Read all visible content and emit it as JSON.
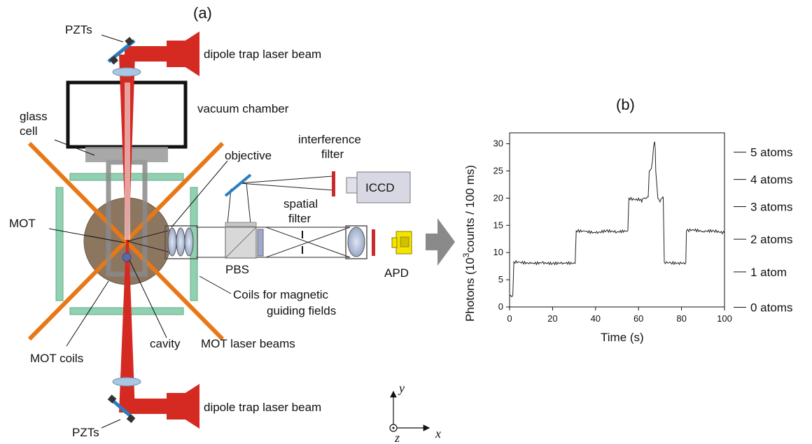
{
  "panel_a": {
    "label": "(a)",
    "dipole_beam_top": "dipole trap laser beam",
    "dipole_beam_bottom": "dipole trap laser beam",
    "pzts_top": "PZTs",
    "pzts_bottom": "PZTs",
    "vacuum_chamber": "vacuum chamber",
    "glass_cell_line1": "glass",
    "glass_cell_line2": "cell",
    "objective": "objective",
    "interference_filter_line1": "interference",
    "interference_filter_line2": "filter",
    "iccd": "ICCD",
    "spatial_filter_line1": "spatial",
    "spatial_filter_line2": "filter",
    "mot": "MOT",
    "pbs": "PBS",
    "apd": "APD",
    "coils_line1": "Coils for magnetic",
    "coils_line2": "guiding fields",
    "cavity": "cavity",
    "mot_laser_beams": "MOT laser beams",
    "mot_coils": "MOT coils",
    "axis_y": "y",
    "axis_x": "x",
    "axis_z": "z"
  },
  "colors": {
    "dipole_red": "#d42a22",
    "mot_orange": "#e87817",
    "coil_green": "#8fd1b0",
    "glass_gray": "#9a9a9a",
    "cell_brown": "#8c7660",
    "mirror_blue": "#2a7ec0",
    "apd_yellow": "#f5e400",
    "arrow_gray": "#8a8a8a"
  },
  "chart_data": {
    "type": "line",
    "panel_label": "(b)",
    "xlabel": "Time (s)",
    "ylabel_prefix": "Photons (10",
    "ylabel_exp": "3",
    "ylabel_suffix": "counts / 100 ms)",
    "xlim": [
      0,
      100
    ],
    "ylim": [
      0,
      32
    ],
    "xticks": [
      "0",
      "20",
      "40",
      "60",
      "80",
      "100"
    ],
    "yticks": [
      "0",
      "5",
      "10",
      "15",
      "20",
      "25",
      "30"
    ],
    "atom_levels": [
      {
        "label": "5 atoms",
        "y": 30.5
      },
      {
        "label": "4 atoms",
        "y": 25.5
      },
      {
        "label": "3 atoms",
        "y": 20.5
      },
      {
        "label": "2 atoms",
        "y": 14.5
      },
      {
        "label": "1 atom",
        "y": 8.5
      },
      {
        "label": "0 atoms",
        "y": 2.0
      }
    ],
    "series": [
      {
        "x": [
          0,
          1.5,
          2,
          5,
          10,
          15,
          20,
          25,
          30.5,
          31,
          35,
          40,
          45,
          50,
          55,
          55.5,
          58,
          61,
          61.5,
          62,
          63,
          64.5,
          65,
          66,
          66.5,
          67,
          67.5,
          67.8,
          68,
          69,
          70,
          71,
          71.5,
          72,
          75,
          80,
          82,
          82.3,
          85,
          90,
          95,
          100
        ],
        "y": [
          2.0,
          2.1,
          8.3,
          8.2,
          8.0,
          8.1,
          8.0,
          8.1,
          8.0,
          14.0,
          13.9,
          13.6,
          14.0,
          13.8,
          14.0,
          20.0,
          19.7,
          19.8,
          19.2,
          19.9,
          20.0,
          20.2,
          25.0,
          25.5,
          27.0,
          29.5,
          30.4,
          29.0,
          25.0,
          20.0,
          19.3,
          20.0,
          20.1,
          8.2,
          8.1,
          8.0,
          8.1,
          14.0,
          14.2,
          13.9,
          14.0,
          13.6
        ]
      }
    ]
  }
}
